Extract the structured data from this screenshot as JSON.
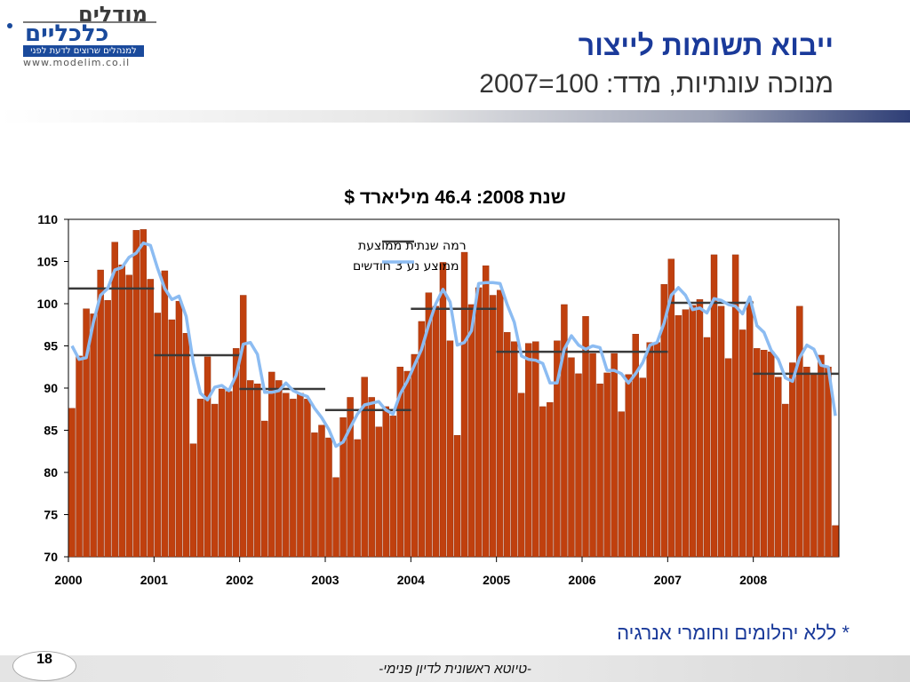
{
  "header": {
    "logo_word1": "מודלים",
    "logo_word2": "כלכליים",
    "logo_tagline": "למנהלים שרוצים לדעת לפני",
    "logo_url": "www.modelim.co.il",
    "title": "ייבוא תשומות לייצור",
    "subtitle": "מנוכה עונתיות, מדד: 100=2007"
  },
  "colors": {
    "bar": "#c0400e",
    "bar_edge": "#8f2a06",
    "moving_avg": "#8cbcf2",
    "annual_level": "#3a3a3a",
    "title": "#1a3a9a"
  },
  "chart_data": {
    "type": "bar",
    "title": "שנת 2008: 46.4 מיליארד $",
    "xlabel": "",
    "ylabel": "",
    "ylim": [
      70,
      110
    ],
    "yticks": [
      70,
      75,
      80,
      85,
      90,
      95,
      100,
      105,
      110
    ],
    "xlim": [
      2000,
      2009
    ],
    "xticks": [
      "2000",
      "2001",
      "2002",
      "2003",
      "2004",
      "2005",
      "2006",
      "2007",
      "2008"
    ],
    "grid": false,
    "legend_position": "top-center",
    "legend": [
      "רמה שנתית ממוצעת",
      "ממוצע נע 3 חודשים"
    ],
    "series": [
      {
        "name": "monthly",
        "type": "bar",
        "x_start": 2000,
        "interval": "month",
        "values": [
          87.6,
          93.8,
          99.4,
          98.8,
          104.0,
          100.4,
          107.3,
          104.6,
          103.4,
          108.7,
          108.8,
          102.9,
          98.9,
          103.9,
          98.1,
          100.3,
          96.5,
          83.4,
          88.7,
          93.7,
          88.1,
          89.9,
          89.6,
          94.7,
          101.0,
          90.9,
          90.5,
          86.1,
          91.9,
          90.9,
          89.4,
          88.7,
          89.4,
          88.7,
          84.7,
          85.6,
          84.1,
          79.4,
          86.5,
          88.9,
          83.9,
          91.3,
          88.9,
          85.4,
          87.8,
          86.7,
          92.5,
          92.0,
          94.0,
          97.9,
          101.3,
          99.7,
          104.9,
          95.6,
          84.4,
          106.1,
          99.9,
          101.9,
          104.5,
          101.0,
          101.6,
          96.6,
          95.5,
          89.4,
          95.3,
          95.5,
          87.8,
          88.3,
          95.6,
          99.9,
          93.6,
          91.7,
          98.5,
          94.1,
          90.5,
          91.8,
          94.1,
          87.2,
          91.6,
          96.4,
          91.2,
          95.4,
          95.4,
          102.3,
          105.3,
          98.6,
          99.3,
          99.8,
          100.5,
          96.0,
          105.8,
          99.7,
          93.5,
          105.8,
          96.9,
          100.3,
          94.7,
          94.5,
          94.3,
          91.3,
          88.1,
          93.0,
          99.7,
          92.5,
          91.6,
          93.9,
          92.5,
          73.7
        ]
      },
      {
        "name": "moving_avg_3m",
        "type": "line",
        "x_start": 2000,
        "interval": "month",
        "values": [
          95.0,
          93.4,
          93.6,
          97.8,
          101.0,
          101.8,
          104.0,
          104.3,
          105.5,
          106.0,
          107.2,
          106.9,
          104.2,
          101.8,
          100.5,
          100.9,
          98.5,
          93.0,
          89.4,
          88.6,
          90.1,
          90.3,
          89.7,
          91.5,
          95.2,
          95.4,
          94.0,
          89.5,
          89.5,
          89.7,
          90.6,
          89.7,
          89.3,
          89.0,
          87.6,
          86.5,
          85.1,
          83.1,
          83.6,
          85.3,
          86.9,
          88.0,
          88.2,
          88.4,
          87.4,
          86.9,
          89.3,
          90.8,
          92.7,
          94.6,
          97.5,
          100.0,
          101.7,
          100.2,
          95.1,
          95.4,
          96.8,
          102.4,
          102.5,
          102.5,
          102.4,
          99.9,
          97.8,
          93.8,
          93.4,
          93.3,
          92.9,
          90.6,
          90.6,
          94.6,
          96.2,
          95.1,
          94.6,
          95.0,
          94.8,
          92.1,
          92.1,
          91.7,
          90.6,
          91.7,
          93.0,
          95.1,
          95.4,
          97.7,
          101.0,
          101.9,
          101.0,
          99.3,
          99.5,
          98.9,
          100.6,
          100.4,
          99.9,
          99.7,
          98.8,
          100.8,
          97.4,
          96.6,
          94.5,
          93.4,
          91.2,
          90.8,
          93.6,
          95.1,
          94.6,
          92.7,
          92.5,
          86.7
        ]
      },
      {
        "name": "annual_level",
        "type": "step",
        "years": [
          2000,
          2001,
          2002,
          2003,
          2004,
          2005,
          2006,
          2007,
          2008
        ],
        "values": [
          101.8,
          93.9,
          89.9,
          87.4,
          99.4,
          94.3,
          94.3,
          100.1,
          91.7
        ]
      }
    ]
  },
  "footnote": "* ללא יהלומים וחומרי אנרגיה",
  "footer": {
    "text": "-טיוטא ראשונית לדיון פנימי-",
    "page_number": "18"
  }
}
